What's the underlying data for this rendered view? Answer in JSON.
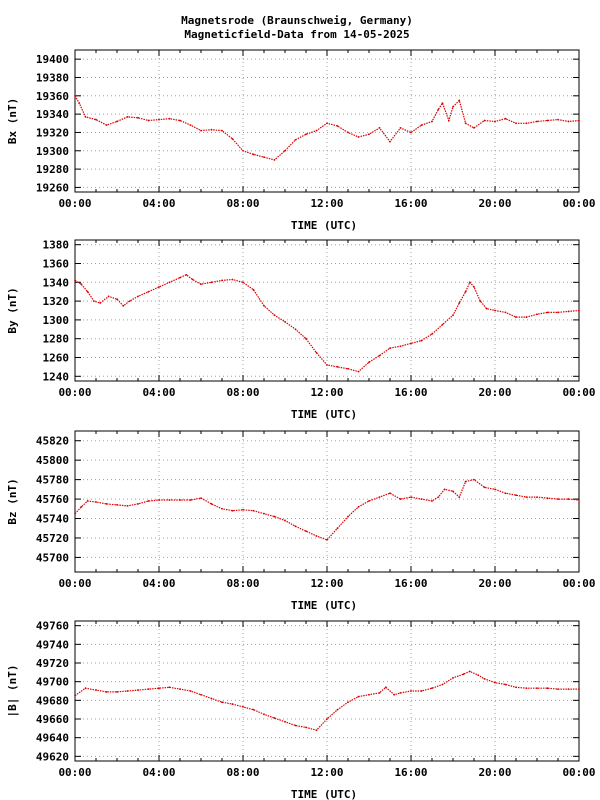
{
  "title_line1": "Magnetsrode (Braunschweig, Germany)",
  "title_line2": "Magneticfield-Data from 14-05-2025",
  "colors": {
    "series": "#dd0000",
    "grid": "#a0a0a0",
    "axes": "#000000"
  },
  "chart_data": [
    {
      "type": "line",
      "ylabel": "Bx (nT)",
      "xlabel": "TIME (UTC)",
      "xticks": [
        "00:00",
        "04:00",
        "08:00",
        "12:00",
        "16:00",
        "20:00",
        "00:00"
      ],
      "xlim": [
        0,
        24
      ],
      "ylim": [
        19255,
        19410
      ],
      "yticks": [
        19260,
        19280,
        19300,
        19320,
        19340,
        19360,
        19380,
        19400
      ],
      "grid": true,
      "series": [
        {
          "x": [
            0,
            0.2,
            0.5,
            1,
            1.5,
            2,
            2.5,
            3,
            3.5,
            4,
            4.5,
            5,
            5.5,
            6,
            6.5,
            7,
            7.5,
            8,
            8.5,
            9,
            9.5,
            10,
            10.5,
            11,
            11.5,
            12,
            12.5,
            13,
            13.5,
            14,
            14.5,
            15,
            15.5,
            16,
            16.5,
            17,
            17.3,
            17.5,
            17.8,
            18,
            18.3,
            18.6,
            19,
            19.5,
            20,
            20.5,
            21,
            21.5,
            22,
            22.5,
            23,
            23.5,
            24
          ],
          "values": [
            19360,
            19352,
            19337,
            19334,
            19328,
            19332,
            19337,
            19336,
            19333,
            19334,
            19335,
            19333,
            19328,
            19322,
            19323,
            19322,
            19313,
            19300,
            19296,
            19293,
            19290,
            19300,
            19312,
            19318,
            19322,
            19330,
            19327,
            19320,
            19315,
            19318,
            19325,
            19310,
            19325,
            19320,
            19328,
            19332,
            19345,
            19352,
            19333,
            19348,
            19355,
            19330,
            19325,
            19333,
            19332,
            19335,
            19330,
            19330,
            19332,
            19333,
            19334,
            19332,
            19333
          ]
        }
      ]
    },
    {
      "type": "line",
      "ylabel": "By (nT)",
      "xlabel": "TIME (UTC)",
      "xticks": [
        "00:00",
        "04:00",
        "08:00",
        "12:00",
        "16:00",
        "20:00",
        "00:00"
      ],
      "xlim": [
        0,
        24
      ],
      "ylim": [
        1235,
        1385
      ],
      "yticks": [
        1240,
        1260,
        1280,
        1300,
        1320,
        1340,
        1360,
        1380
      ],
      "grid": true,
      "series": [
        {
          "x": [
            0,
            0.3,
            0.6,
            0.9,
            1.2,
            1.6,
            2,
            2.3,
            2.6,
            3,
            3.5,
            4,
            4.5,
            5,
            5.3,
            5.6,
            6,
            6.5,
            7,
            7.5,
            8,
            8.5,
            9,
            9.5,
            10,
            10.5,
            11,
            11.5,
            12,
            12.5,
            13,
            13.5,
            14,
            14.5,
            15,
            15.5,
            16,
            16.5,
            17,
            17.5,
            18,
            18.3,
            18.6,
            18.8,
            19,
            19.3,
            19.6,
            20,
            20.5,
            21,
            21.5,
            22,
            22.5,
            23,
            23.5,
            24
          ],
          "values": [
            1342,
            1338,
            1330,
            1320,
            1318,
            1325,
            1322,
            1315,
            1320,
            1325,
            1330,
            1335,
            1340,
            1345,
            1348,
            1343,
            1338,
            1340,
            1342,
            1343,
            1340,
            1332,
            1315,
            1305,
            1298,
            1290,
            1280,
            1265,
            1252,
            1250,
            1248,
            1245,
            1255,
            1262,
            1270,
            1272,
            1275,
            1278,
            1285,
            1295,
            1305,
            1318,
            1330,
            1340,
            1335,
            1320,
            1312,
            1310,
            1308,
            1303,
            1303,
            1306,
            1308,
            1308,
            1309,
            1310
          ]
        }
      ]
    },
    {
      "type": "line",
      "ylabel": "Bz (nT)",
      "xlabel": "TIME (UTC)",
      "xticks": [
        "00:00",
        "04:00",
        "08:00",
        "12:00",
        "16:00",
        "20:00",
        "00:00"
      ],
      "xlim": [
        0,
        24
      ],
      "ylim": [
        45685,
        45830
      ],
      "yticks": [
        45700,
        45720,
        45740,
        45760,
        45780,
        45800,
        45820
      ],
      "grid": true,
      "series": [
        {
          "x": [
            0,
            0.3,
            0.6,
            1,
            1.5,
            2,
            2.5,
            3,
            3.5,
            4,
            4.5,
            5,
            5.5,
            6,
            6.5,
            7,
            7.5,
            8,
            8.5,
            9,
            9.5,
            10,
            10.5,
            11,
            11.5,
            12,
            12.5,
            13,
            13.5,
            14,
            14.5,
            15,
            15.5,
            16,
            16.5,
            17,
            17.3,
            17.6,
            18,
            18.3,
            18.6,
            19,
            19.5,
            20,
            20.5,
            21,
            21.5,
            22,
            22.5,
            23,
            23.5,
            24
          ],
          "values": [
            45745,
            45752,
            45758,
            45757,
            45755,
            45754,
            45753,
            45755,
            45758,
            45759,
            45759,
            45759,
            45759,
            45761,
            45755,
            45750,
            45748,
            45749,
            45748,
            45745,
            45742,
            45738,
            45732,
            45727,
            45722,
            45718,
            45730,
            45742,
            45752,
            45758,
            45762,
            45766,
            45760,
            45762,
            45760,
            45758,
            45762,
            45770,
            45768,
            45762,
            45778,
            45780,
            45772,
            45770,
            45766,
            45764,
            45762,
            45762,
            45761,
            45760,
            45760,
            45759
          ]
        }
      ]
    },
    {
      "type": "line",
      "ylabel": "|B| (nT)",
      "xlabel": "TIME (UTC)",
      "xticks": [
        "00:00",
        "04:00",
        "08:00",
        "12:00",
        "16:00",
        "20:00",
        "00:00"
      ],
      "xlim": [
        0,
        24
      ],
      "ylim": [
        49615,
        49765
      ],
      "yticks": [
        49620,
        49640,
        49660,
        49680,
        49700,
        49720,
        49740,
        49760
      ],
      "grid": true,
      "series": [
        {
          "x": [
            0,
            0.5,
            1,
            1.5,
            2,
            2.5,
            3,
            3.5,
            4,
            4.5,
            5,
            5.5,
            6,
            6.5,
            7,
            7.5,
            8,
            8.5,
            9,
            9.5,
            10,
            10.5,
            11,
            11.5,
            12,
            12.5,
            13,
            13.5,
            14,
            14.5,
            14.8,
            15.2,
            15.5,
            16,
            16.5,
            17,
            17.5,
            18,
            18.5,
            18.8,
            19.2,
            19.5,
            20,
            20.5,
            21,
            21.5,
            22,
            22.5,
            23,
            23.5,
            24
          ],
          "values": [
            49685,
            49693,
            49691,
            49689,
            49689,
            49690,
            49691,
            49692,
            49693,
            49694,
            49692,
            49690,
            49686,
            49682,
            49678,
            49676,
            49673,
            49670,
            49665,
            49661,
            49657,
            49653,
            49651,
            49648,
            49660,
            49670,
            49678,
            49684,
            49686,
            49688,
            49694,
            49686,
            49688,
            49690,
            49690,
            49693,
            49697,
            49704,
            49708,
            49711,
            49707,
            49703,
            49699,
            49697,
            49694,
            49693,
            49693,
            49693,
            49692,
            49692,
            49692
          ]
        }
      ]
    }
  ]
}
